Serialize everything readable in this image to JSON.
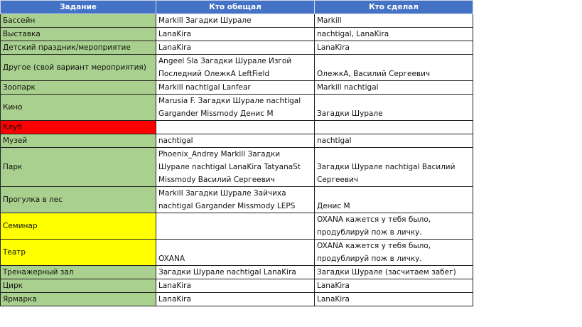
{
  "headers": [
    "Задание",
    "Кто обещал",
    "Кто сделал"
  ],
  "colors": {
    "header": "#4472c4",
    "green": "#a9d08e",
    "red": "#ff0000",
    "yellow": "#ffff00"
  },
  "rows": [
    {
      "task": "Бассейн",
      "promised": "Markill Загадки Шурале",
      "done": "Markill",
      "color": "green",
      "lines": 1
    },
    {
      "task": "Выставка",
      "promised": "LanaKira",
      "done": "nachtigal, LanaKira",
      "color": "green",
      "lines": 1
    },
    {
      "task": "Детский праздник/мероприятие",
      "promised": "LanaKira",
      "done": "LanaKira",
      "color": "green",
      "lines": 1
    },
    {
      "task": "Другое (свой вариант мероприятия)",
      "promised": "Angeel Sla Загадки Шурале Изгой Последний ОлежкА LeftField",
      "done": "ОлежкА, Василий Сергеевич",
      "color": "green",
      "lines": 2
    },
    {
      "task": "Зоопарк",
      "promised": "Markill nachtigal Lanfear",
      "done": "Markill nachtigal",
      "color": "green",
      "lines": 1
    },
    {
      "task": "Кино",
      "promised": "Marusia F. Загадки Шурале nachtigal Gargander Missmody Денис М",
      "done": "Загадки Шурале",
      "color": "green",
      "lines": 2
    },
    {
      "task": "Клуб",
      "promised": "",
      "done": "",
      "color": "red",
      "lines": 1
    },
    {
      "task": "Музей",
      "promised": "nachtigal",
      "done": "nachtigal",
      "color": "green",
      "lines": 1
    },
    {
      "task": "Парк",
      "promised": "Phoenix_Andrey Markill Загадки Шурале nachtigal LanaKira TatyanaSt Missmody Василий Сергеевич",
      "done": "Загадки Шурале nachtigal Василий Сергеевич",
      "color": "green",
      "lines": 3
    },
    {
      "task": "Прогулка в лес",
      "promised": "Markill Загадки Шурале Зайчиха nachtigal Gargander Missmody LEPS",
      "done": "Денис М",
      "color": "green",
      "lines": 2
    },
    {
      "task": "Семинар",
      "promised": "",
      "done": "OXANA кажется у тебя было, продублируй пож в личку.",
      "color": "yellow",
      "lines": 2
    },
    {
      "task": "Театр",
      "promised": "OXANA",
      "done": "OXANA кажется у тебя было, продублируй пож в личку.",
      "color": "yellow",
      "lines": 2
    },
    {
      "task": "Тренажерный зал",
      "promised": "Загадки Шурале nachtigal LanaKira",
      "done": "Загадки Шурале (засчитаем забег)",
      "color": "green",
      "lines": 1
    },
    {
      "task": "Цирк",
      "promised": "LanaKira",
      "done": "LanaKira",
      "color": "green",
      "lines": 1
    },
    {
      "task": "Ярмарка",
      "promised": "LanaKira",
      "done": "LanaKira",
      "color": "green",
      "lines": 1
    }
  ]
}
